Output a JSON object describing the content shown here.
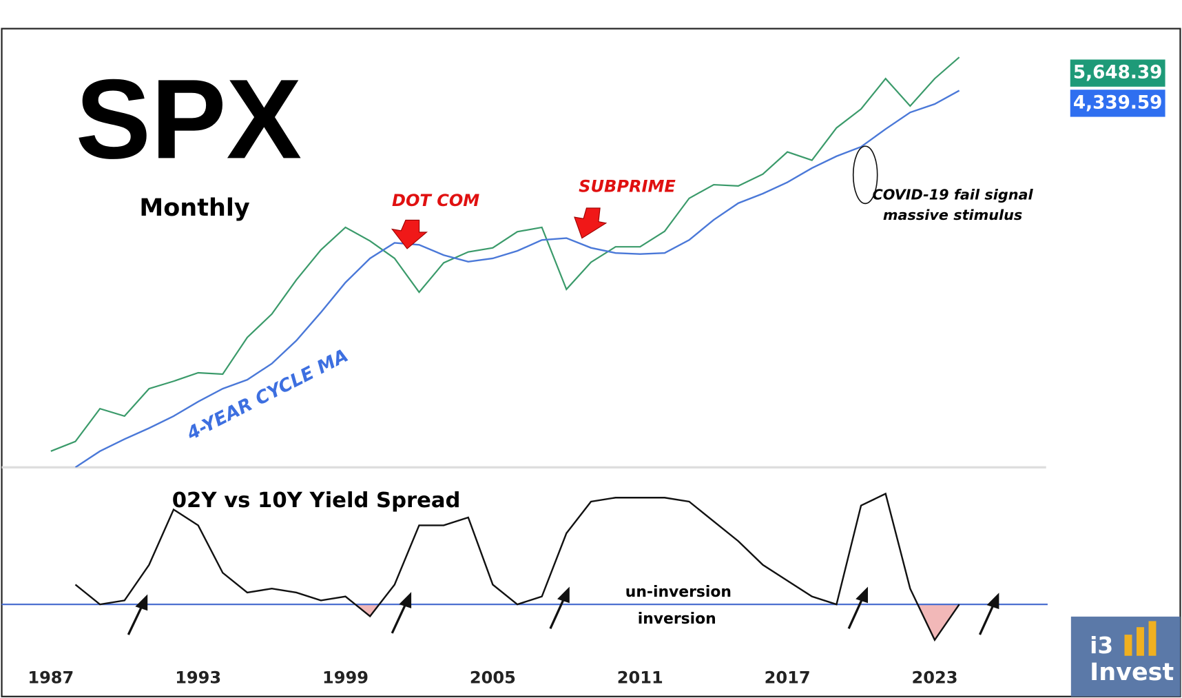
{
  "chart_data": [
    {
      "type": "line",
      "title": "SPX",
      "subtitle": "Monthly",
      "log_scale": true,
      "xlim": [
        1985,
        2027.6
      ],
      "ylim": [
        220,
        7000
      ],
      "annotations": [
        "DOT COM",
        "SUBPRIME",
        "COVID-19 fail signal",
        "massive stimulus"
      ],
      "series": [
        {
          "color": "#3a9a6a",
          "x": [
            1987,
            1988,
            1989,
            1990,
            1991,
            1992,
            1993,
            1994,
            1995,
            1996,
            1997,
            1998,
            1999,
            2000,
            2001,
            2002,
            2003,
            2004,
            2005,
            2006,
            2007,
            2008,
            2009,
            2010,
            2011,
            2012,
            2013,
            2014,
            2015,
            2016,
            2017,
            2018,
            2019,
            2020,
            2021,
            2022,
            2023,
            2024
          ],
          "values": [
            250,
            270,
            350,
            330,
            410,
            435,
            465,
            460,
            615,
            740,
            970,
            1230,
            1470,
            1320,
            1150,
            880,
            1110,
            1210,
            1250,
            1420,
            1470,
            900,
            1115,
            1260,
            1260,
            1425,
            1850,
            2060,
            2040,
            2240,
            2670,
            2500,
            3230,
            3750,
            4770,
            3840,
            4770,
            5648.39
          ],
          "value_labels": [
            null,
            null,
            null,
            null,
            null,
            null,
            null,
            null,
            null,
            null,
            null,
            null,
            null,
            null,
            null,
            null,
            null,
            null,
            null,
            null,
            null,
            null,
            null,
            null,
            null,
            null,
            null,
            null,
            null,
            null,
            null,
            null,
            null,
            null,
            null,
            null,
            null,
            "5,648.39"
          ],
          "label_color": "#1e9a78"
        },
        {
          "name": "4-YEAR CYCLE MA",
          "color": "#4a78d8",
          "x": [
            1988,
            1989,
            1990,
            1991,
            1992,
            1993,
            1994,
            1995,
            1996,
            1997,
            1998,
            1999,
            2000,
            2001,
            2002,
            2003,
            2004,
            2005,
            2006,
            2007,
            2008,
            2009,
            2010,
            2011,
            2012,
            2013,
            2014,
            2015,
            2016,
            2017,
            2018,
            2019,
            2020,
            2021,
            2022,
            2023,
            2024
          ],
          "values": [
            220,
            250,
            275,
            300,
            330,
            370,
            410,
            440,
            500,
            600,
            750,
            950,
            1150,
            1300,
            1280,
            1180,
            1120,
            1150,
            1220,
            1330,
            1350,
            1250,
            1200,
            1190,
            1200,
            1330,
            1560,
            1780,
            1920,
            2100,
            2350,
            2580,
            2780,
            3200,
            3650,
            3900,
            4339.59
          ],
          "value_labels": [
            null,
            null,
            null,
            null,
            null,
            null,
            null,
            null,
            null,
            null,
            null,
            null,
            null,
            null,
            null,
            null,
            null,
            null,
            null,
            null,
            null,
            null,
            null,
            null,
            null,
            null,
            null,
            null,
            null,
            null,
            null,
            null,
            null,
            null,
            null,
            null,
            "4,339.59"
          ],
          "label_color": "#2f6ff0"
        }
      ]
    },
    {
      "type": "area-line",
      "title": "02Y vs 10Y Yield Spread",
      "xlim": [
        1985,
        2027.6
      ],
      "ylim": [
        -1.3,
        3.2
      ],
      "xticks": [
        1987,
        1993,
        1999,
        2005,
        2011,
        2017,
        2023
      ],
      "annotations": [
        "un-inversion",
        "inversion"
      ],
      "color": "#111111",
      "negative_fill": "#f2b8b8",
      "baseline_color": "#4a6fd0",
      "x": [
        1988,
        1989,
        1990,
        1991,
        1992,
        1993,
        1994,
        1995,
        1996,
        1997,
        1998,
        1999,
        2000,
        2001,
        2002,
        2003,
        2004,
        2005,
        2006,
        2007,
        2008,
        2009,
        2010,
        2011,
        2012,
        2013,
        2014,
        2015,
        2016,
        2017,
        2018,
        2019,
        2020,
        2021,
        2022,
        2023,
        2024
      ],
      "values": [
        0.5,
        0.0,
        0.1,
        1.0,
        2.4,
        2.0,
        0.8,
        0.3,
        0.4,
        0.3,
        0.1,
        0.2,
        -0.3,
        0.5,
        2.0,
        2.0,
        2.2,
        0.5,
        0.0,
        0.2,
        1.8,
        2.6,
        2.7,
        2.7,
        2.7,
        2.6,
        2.1,
        1.6,
        1.0,
        0.6,
        0.2,
        0.0,
        2.5,
        2.8,
        0.4,
        -0.9,
        0.0
      ]
    }
  ],
  "logo": {
    "line1": "i3",
    "line2": "Invest"
  }
}
